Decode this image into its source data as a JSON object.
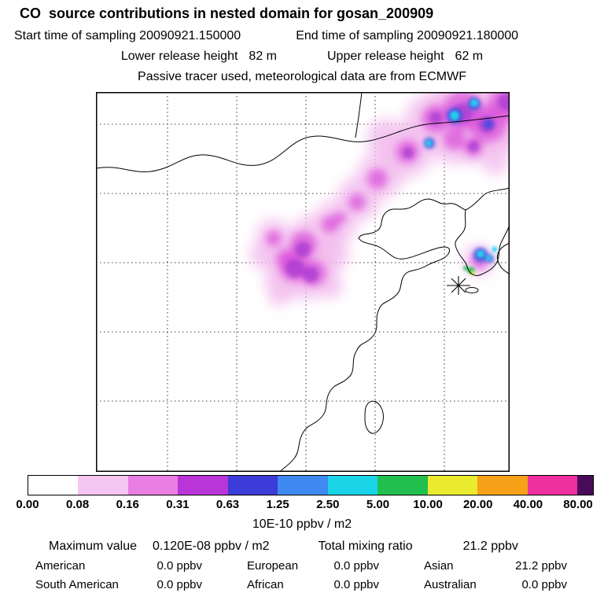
{
  "header": {
    "title": "CO  source contributions in nested domain for gosan_200909",
    "start": "Start time of sampling 20090921.150000",
    "end": "End time of sampling 20090921.180000",
    "lower_label": "Lower release height",
    "lower_value": "82 m",
    "upper_label": "Upper release height",
    "upper_value": "62 m",
    "tracer_line": "Passive tracer used, meteorological data are from ECMWF"
  },
  "colorbar": {
    "levels": [
      "0.00",
      "0.08",
      "0.16",
      "0.31",
      "0.63",
      "1.25",
      "2.50",
      "5.00",
      "10.00",
      "20.00",
      "40.00",
      "80.00"
    ],
    "colors": [
      "#ffffff",
      "#f6c6f2",
      "#e97ee3",
      "#b935d8",
      "#3c3cd8",
      "#3f8af2",
      "#1ad4e8",
      "#22c04e",
      "#eaea2e",
      "#f7a119",
      "#ee2f9e",
      "#470b5a"
    ],
    "units": "10E-10 ppbv / m2"
  },
  "stats": {
    "max_label": "Maximum value",
    "max_value": "0.120E-08 ppbv / m2",
    "total_label": "Total mixing ratio",
    "total_value": "21.2 ppbv",
    "regions": [
      {
        "label": "American",
        "value": "0.0 ppbv"
      },
      {
        "label": "European",
        "value": "0.0 ppbv"
      },
      {
        "label": "Asian",
        "value": "21.2 ppbv"
      },
      {
        "label": "South American",
        "value": "0.0 ppbv"
      },
      {
        "label": "African",
        "value": "0.0 ppbv"
      },
      {
        "label": "Australian",
        "value": "0.0 ppbv"
      }
    ]
  },
  "map": {
    "receptor_marker": "asterisk at Gosan receptor",
    "plume_layers": [
      {
        "color": "#f2bdee",
        "opacity": 0.8,
        "blur": "blur8",
        "blobs": [
          [
            470,
            18,
            46
          ],
          [
            505,
            38,
            42
          ],
          [
            526,
            25,
            38
          ],
          [
            518,
            55,
            24
          ],
          [
            430,
            38,
            38
          ],
          [
            395,
            75,
            34
          ],
          [
            362,
            105,
            30
          ],
          [
            335,
            135,
            28
          ],
          [
            305,
            165,
            28
          ],
          [
            276,
            188,
            32
          ],
          [
            252,
            212,
            34
          ],
          [
            272,
            228,
            36
          ],
          [
            240,
            240,
            26
          ],
          [
            296,
            205,
            26
          ],
          [
            455,
            60,
            32
          ],
          [
            368,
            58,
            24
          ],
          [
            225,
            183,
            22
          ],
          [
            213,
            207,
            18
          ],
          [
            480,
            70,
            22
          ],
          [
            300,
            248,
            14
          ],
          [
            232,
            260,
            12
          ],
          [
            508,
            90,
            16
          ],
          [
            487,
            214,
            20
          ]
        ]
      },
      {
        "color": "#d94fd9",
        "opacity": 0.72,
        "blur": "blur5",
        "blobs": [
          [
            466,
            24,
            25
          ],
          [
            498,
            40,
            24
          ],
          [
            521,
            16,
            22
          ],
          [
            432,
            34,
            18
          ],
          [
            396,
            76,
            15
          ],
          [
            358,
            110,
            13
          ],
          [
            332,
            140,
            11
          ],
          [
            298,
            168,
            11
          ],
          [
            310,
            160,
            8
          ],
          [
            264,
            194,
            17
          ],
          [
            252,
            222,
            19
          ],
          [
            276,
            230,
            17
          ],
          [
            242,
            212,
            13
          ],
          [
            456,
            60,
            14
          ],
          [
            480,
            70,
            12
          ],
          [
            226,
            186,
            10
          ],
          [
            488,
            214,
            11
          ]
        ]
      },
      {
        "color": "#9c2fd0",
        "opacity": 0.65,
        "blur": "blur3",
        "blobs": [
          [
            263,
            200,
            10
          ],
          [
            253,
            224,
            12
          ],
          [
            273,
            232,
            10
          ],
          [
            466,
            27,
            13
          ],
          [
            497,
            41,
            11
          ],
          [
            432,
            33,
            8
          ],
          [
            522,
            13,
            11
          ],
          [
            397,
            77,
            7
          ],
          [
            480,
            69,
            7
          ]
        ]
      },
      {
        "color": "#2e4fe0",
        "opacity": 0.85,
        "blur": "blur3",
        "blobs": [
          [
            456,
            30,
            10
          ],
          [
            481,
            15,
            8
          ],
          [
            424,
            65,
            7
          ],
          [
            499,
            41,
            6
          ],
          [
            489,
            207,
            9
          ],
          [
            501,
            212,
            5
          ]
        ]
      },
      {
        "color": "#23d3f0",
        "opacity": 0.95,
        "blur": "blur2",
        "blobs": [
          [
            456,
            30,
            6
          ],
          [
            481,
            14,
            5
          ],
          [
            423,
            65,
            4
          ],
          [
            489,
            206,
            5
          ],
          [
            499,
            211,
            3.5
          ],
          [
            507,
            200,
            3.5
          ]
        ]
      },
      {
        "color": "#1fc24f",
        "opacity": 0.95,
        "blur": "blur2",
        "blobs": [
          [
            477,
            227,
            4.5
          ],
          [
            470,
            224,
            3
          ]
        ]
      },
      {
        "color": "#eded2e",
        "opacity": 1,
        "blur": "blur2",
        "blobs": [
          [
            479,
            230,
            2.5
          ]
        ]
      }
    ]
  },
  "chart_data": {
    "type": "heatmap",
    "title": "CO source contributions in nested domain for gosan_200909",
    "field_units": "10E-10 ppbv / m2",
    "colorbar_levels": [
      0.0,
      0.08,
      0.16,
      0.31,
      0.63,
      1.25,
      2.5,
      5.0,
      10.0,
      20.0,
      40.0,
      80.0
    ],
    "colorbar_colors": [
      "#ffffff",
      "#f6c6f2",
      "#e97ee3",
      "#b935d8",
      "#3c3cd8",
      "#3f8af2",
      "#1ad4e8",
      "#22c04e",
      "#eaea2e",
      "#f7a119",
      "#ee2f9e",
      "#470b5a"
    ],
    "sampling_start": "20090921.150000",
    "sampling_end": "20090921.180000",
    "lower_release_height_m": 82,
    "upper_release_height_m": 62,
    "tracer": "Passive tracer",
    "meteorology": "ECMWF",
    "maximum_value": "0.120E-08 ppbv / m2",
    "total_mixing_ratio_ppbv": 21.2,
    "regional_contributions_ppbv": {
      "American": 0.0,
      "European": 0.0,
      "Asian": 21.2,
      "South American": 0.0,
      "African": 0.0,
      "Australian": 0.0
    },
    "receptor": "gosan (asterisk marker near Korea/Jeju on map)",
    "plume_description": "Magenta/purple plume band runs from the northeast corner of the East Asia domain southwest across northeastern China, with embedded blue/cyan maxima (~0.6-2.5 units), a secondary purple/magenta maximum over east-central China, and a small intense cyan/green/yellow hotspot (up to ~10-20 units) just northeast of the receptor asterisk near the Korean peninsula."
  }
}
